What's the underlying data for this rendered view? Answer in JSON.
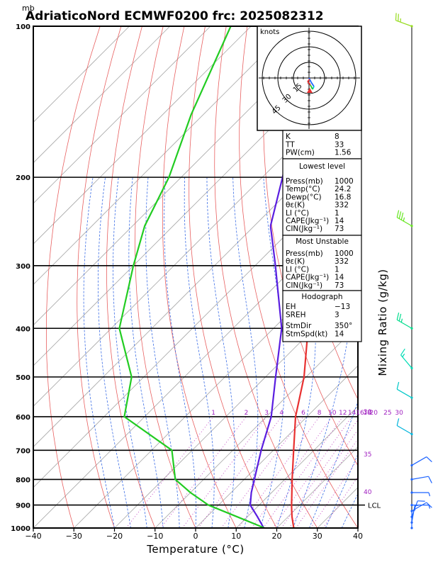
{
  "header": {
    "unit_mb": "mb",
    "title": "AdriaticoNord ECMWF0200 frc: 2025082312"
  },
  "chart_data": {
    "type": "line",
    "xlabel": "Temperature (°C)",
    "ylabel_right": "Mixing Ratio (g/kg)",
    "xlim": [
      -40,
      40
    ],
    "ylim_hpa": [
      1000,
      100
    ],
    "x_ticks": [
      -40,
      -30,
      -20,
      -10,
      0,
      10,
      20,
      30,
      40
    ],
    "pressure_ticks": [
      100,
      200,
      300,
      400,
      500,
      600,
      700,
      800,
      900,
      1000
    ],
    "theta_e_labels": [
      "30",
      "35",
      "40"
    ],
    "mixing_ratio_labels": [
      "1",
      "2",
      "3",
      "4",
      "6",
      "8",
      "10",
      "12",
      "14",
      "16",
      "18",
      "20",
      "25",
      "30"
    ],
    "series": [
      {
        "color": "#e83030",
        "points": [
          [
            1000,
            24.2
          ],
          [
            950,
            21.0
          ],
          [
            925,
            19.5
          ],
          [
            900,
            18.0
          ],
          [
            850,
            15.0
          ],
          [
            800,
            11.8
          ],
          [
            700,
            5.0
          ],
          [
            600,
            -2.8
          ],
          [
            500,
            -10.5
          ],
          [
            400,
            -21.5
          ],
          [
            300,
            -36.5
          ],
          [
            250,
            -46.5
          ],
          [
            200,
            -52.0
          ],
          [
            150,
            -58.0
          ],
          [
            100,
            -66.0
          ]
        ]
      },
      {
        "color": "#5a1ee0",
        "points": [
          [
            1000,
            16.8
          ],
          [
            950,
            12.5
          ],
          [
            900,
            7.8
          ],
          [
            850,
            5.0
          ],
          [
            800,
            2.5
          ],
          [
            700,
            -3.0
          ],
          [
            600,
            -8.8
          ],
          [
            500,
            -17.5
          ],
          [
            400,
            -28.0
          ],
          [
            300,
            -45.0
          ],
          [
            250,
            -56.0
          ],
          [
            200,
            -65.0
          ],
          [
            150,
            -77.0
          ],
          [
            120,
            -84.0
          ]
        ]
      },
      {
        "color": "#22cc22",
        "points": [
          [
            1000,
            17.0
          ],
          [
            950,
            7.5
          ],
          [
            900,
            -2.5
          ],
          [
            850,
            -10.0
          ],
          [
            800,
            -17.0
          ],
          [
            700,
            -25.0
          ],
          [
            600,
            -45.0
          ],
          [
            500,
            -53.0
          ],
          [
            400,
            -68.0
          ],
          [
            300,
            -80.0
          ],
          [
            250,
            -87.0
          ],
          [
            200,
            -93.0
          ],
          [
            150,
            -103.0
          ],
          [
            100,
            -115.0
          ]
        ]
      }
    ],
    "lcl": {
      "label": "LCL",
      "pressure": 900
    },
    "winds_kt": [
      {
        "p": 1000,
        "dir": 0,
        "spd": 5,
        "color": "#1e64ff"
      },
      {
        "p": 975,
        "dir": 10,
        "spd": 8,
        "color": "#1e64ff"
      },
      {
        "p": 950,
        "dir": 20,
        "spd": 10,
        "color": "#1e64ff"
      },
      {
        "p": 925,
        "dir": 60,
        "spd": 10,
        "color": "#1e64ff"
      },
      {
        "p": 900,
        "dir": 90,
        "spd": 5,
        "color": "#1e64ff"
      },
      {
        "p": 850,
        "dir": 90,
        "spd": 8,
        "color": "#1e64ff"
      },
      {
        "p": 800,
        "dir": 80,
        "spd": 12,
        "color": "#1e64ff"
      },
      {
        "p": 750,
        "dir": 60,
        "spd": 10,
        "color": "#1e64ff"
      },
      {
        "p": 650,
        "dir": 300,
        "spd": 10,
        "color": "#00b4dc"
      },
      {
        "p": 550,
        "dir": 300,
        "spd": 10,
        "color": "#00c8c8"
      },
      {
        "p": 480,
        "dir": 320,
        "spd": 15,
        "color": "#00dcb4"
      },
      {
        "p": 400,
        "dir": 300,
        "spd": 25,
        "color": "#00dc8c"
      },
      {
        "p": 250,
        "dir": 300,
        "spd": 35,
        "color": "#64e61e"
      },
      {
        "p": 100,
        "dir": 290,
        "spd": 25,
        "color": "#96dc1e"
      }
    ],
    "hodograph": {
      "title": "knots",
      "ring_labels": [
        "15",
        "30",
        "45"
      ]
    }
  },
  "indices": {
    "top": [
      {
        "label": "K",
        "value": "8"
      },
      {
        "label": "TT",
        "value": "33"
      },
      {
        "label": "PW(cm)",
        "value": "1.56"
      }
    ],
    "lowest": {
      "title": "Lowest level",
      "rows": [
        {
          "label": "Press(mb)",
          "value": "1000"
        },
        {
          "label": "Temp(°C)",
          "value": "24.2"
        },
        {
          "label": "Dewp(°C)",
          "value": "16.8"
        },
        {
          "label": "θε(K)",
          "value": "332"
        },
        {
          "label": "LI (°C)",
          "value": "1"
        },
        {
          "label": "CAPE(Jkg⁻¹)",
          "value": "14"
        },
        {
          "label": "CIN(Jkg⁻¹)",
          "value": "73"
        }
      ]
    },
    "unstable": {
      "title": "Most Unstable",
      "rows": [
        {
          "label": "Press(mb)",
          "value": "1000"
        },
        {
          "label": "θε(K)",
          "value": "332"
        },
        {
          "label": "LI (°C)",
          "value": "1"
        },
        {
          "label": "CAPE(Jkg⁻¹)",
          "value": "14"
        },
        {
          "label": "CIN(Jkg⁻¹)",
          "value": "73"
        }
      ]
    },
    "hodo": {
      "title": "Hodograph",
      "rows": [
        {
          "label": "EH",
          "value": "−13"
        },
        {
          "label": "SREH",
          "value": "3"
        }
      ],
      "rows2": [
        {
          "label": "StmDir",
          "value": "350°"
        },
        {
          "label": "StmSpd(kt)",
          "value": "14"
        }
      ]
    }
  }
}
